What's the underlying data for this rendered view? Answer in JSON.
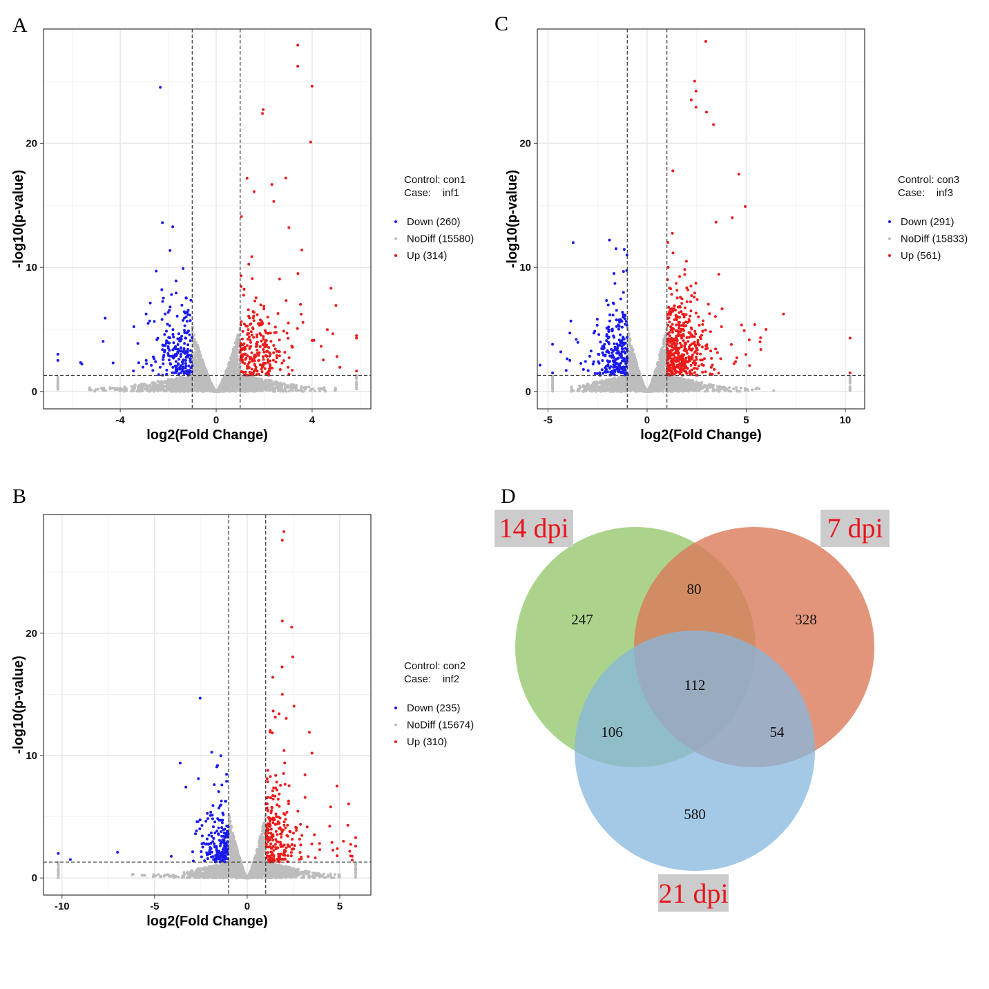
{
  "panels": {
    "A": "A",
    "B": "B",
    "C": "C",
    "D": "D"
  },
  "chart_data": [
    {
      "id": "A",
      "type": "scatter",
      "xlabel": "log2(Fold Change)",
      "ylabel": "-log10(p-value)",
      "xlim": [
        -7.2,
        6.45
      ],
      "ylim": [
        -1.4,
        29.2
      ],
      "xticks": [
        -4,
        0,
        4
      ],
      "yticks": [
        0,
        10,
        20
      ],
      "xminor": [
        -6,
        -2,
        2,
        6
      ],
      "yminor": [
        5,
        15,
        25
      ],
      "thresholds": {
        "log2fc": [
          -1,
          1
        ],
        "neg_log10_p": 1.3
      },
      "grid": true,
      "legend_position": "right",
      "legend": {
        "control": "Control: con1",
        "case": "Case:    inf1",
        "entries": [
          "Down (260)",
          "NoDiff (15580)",
          "Up (314)"
        ]
      },
      "counts": {
        "Down": 260,
        "NoDiff": 15580,
        "Up": 314
      },
      "extreme_x": [
        -6.6,
        5.85
      ],
      "notable_up": [
        [
          3.4,
          27.9
        ],
        [
          3.4,
          26.2
        ],
        [
          4.0,
          24.6
        ],
        [
          1.96,
          22.7
        ],
        [
          1.93,
          22.4
        ],
        [
          3.94,
          20.1
        ],
        [
          2.9,
          17.2
        ],
        [
          1.58,
          16.1
        ],
        [
          2.4,
          15.3
        ],
        [
          3.57,
          11.4
        ],
        [
          5.85,
          4.5
        ],
        [
          5.85,
          4.3
        ]
      ],
      "notable_down": [
        [
          -2.33,
          24.5
        ],
        [
          -2.24,
          13.6
        ],
        [
          -2.5,
          9.7
        ],
        [
          -1.38,
          9.9
        ],
        [
          -6.6,
          3.0
        ],
        [
          -6.6,
          2.5
        ],
        [
          -5.6,
          2.2
        ],
        [
          -4.3,
          2.3
        ]
      ]
    },
    {
      "id": "B",
      "type": "scatter",
      "xlabel": "log2(Fold Change)",
      "ylabel": "-log10(p-value)",
      "xlim": [
        -11.0,
        6.68
      ],
      "ylim": [
        -1.4,
        29.7
      ],
      "xticks": [
        -10,
        -5,
        0,
        5
      ],
      "yticks": [
        0,
        10,
        20
      ],
      "xminor": [
        -7.5,
        -2.5,
        2.5
      ],
      "yminor": [
        5,
        15,
        25
      ],
      "thresholds": {
        "log2fc": [
          -1,
          1
        ],
        "neg_log10_p": 1.3
      },
      "grid": true,
      "legend_position": "right",
      "legend": {
        "control": "Control: con2",
        "case": "Case:    inf2",
        "entries": [
          "Down (235)",
          "NoDiff (15674)",
          "Up (310)"
        ]
      },
      "counts": {
        "Down": 235,
        "NoDiff": 15674,
        "Up": 310
      },
      "extreme_x": [
        -10.2,
        5.86
      ],
      "notable_up": [
        [
          1.98,
          28.3
        ],
        [
          1.9,
          27.6
        ],
        [
          1.9,
          21.0
        ],
        [
          2.4,
          20.5
        ],
        [
          1.38,
          16.4
        ],
        [
          1.9,
          15.0
        ],
        [
          3.36,
          11.9
        ],
        [
          3.5,
          10.2
        ],
        [
          4.85,
          7.5
        ],
        [
          5.86,
          2.6
        ],
        [
          5.2,
          3.0
        ]
      ],
      "notable_down": [
        [
          -2.54,
          14.7
        ],
        [
          -3.62,
          9.4
        ],
        [
          -1.6,
          9.2
        ],
        [
          -10.2,
          2.0
        ],
        [
          -9.55,
          1.5
        ],
        [
          -7.0,
          2.1
        ]
      ]
    },
    {
      "id": "C",
      "type": "scatter",
      "xlabel": "log2(Fold Change)",
      "ylabel": "-log10(p-value)",
      "xlim": [
        -5.54,
        10.98
      ],
      "ylim": [
        -1.4,
        29.2
      ],
      "xticks": [
        -5,
        0,
        5,
        10
      ],
      "yticks": [
        0,
        10,
        20
      ],
      "xminor": [
        -2.5,
        2.5,
        7.5
      ],
      "yminor": [
        5,
        15,
        25
      ],
      "thresholds": {
        "log2fc": [
          -1,
          1
        ],
        "neg_log10_p": 1.3
      },
      "grid": true,
      "legend_position": "right",
      "legend": {
        "control": "Control: con3",
        "case": "Case:    inf3",
        "entries": [
          "Down (291)",
          "NoDiff (15833)",
          "Up (561)"
        ]
      },
      "counts": {
        "Down": 291,
        "NoDiff": 15833,
        "Up": 561
      },
      "extreme_x": [
        -4.77,
        10.24
      ],
      "notable_up": [
        [
          2.96,
          28.2
        ],
        [
          2.4,
          25.0
        ],
        [
          2.47,
          24.2
        ],
        [
          2.23,
          23.5
        ],
        [
          2.47,
          22.9
        ],
        [
          3.0,
          22.5
        ],
        [
          3.35,
          21.5
        ],
        [
          4.63,
          17.5
        ],
        [
          4.95,
          14.9
        ],
        [
          4.3,
          14.0
        ],
        [
          10.24,
          4.3
        ],
        [
          10.24,
          1.5
        ],
        [
          6.0,
          5.0
        ],
        [
          5.7,
          4.0
        ]
      ],
      "notable_down": [
        [
          -3.73,
          12.0
        ],
        [
          -1.9,
          12.2
        ],
        [
          -1.57,
          11.5
        ],
        [
          -4.77,
          3.8
        ],
        [
          -4.77,
          1.5
        ],
        [
          -3.9,
          2.5
        ]
      ]
    }
  ],
  "colors": {
    "Down": "#1a1aee",
    "NoDiff": "#bdbdbd",
    "Up": "#ee1a1a"
  },
  "venn": {
    "sets": [
      {
        "label": "14 dpi",
        "color": "#9ccb78"
      },
      {
        "label": "7 dpi",
        "color": "#dc7b5a"
      },
      {
        "label": "21 dpi",
        "color": "#86b7de"
      }
    ],
    "regions": {
      "only_14": "247",
      "only_7": "328",
      "only_21": "580",
      "14_7": "80",
      "14_21": "106",
      "7_21": "54",
      "all": "112"
    }
  }
}
